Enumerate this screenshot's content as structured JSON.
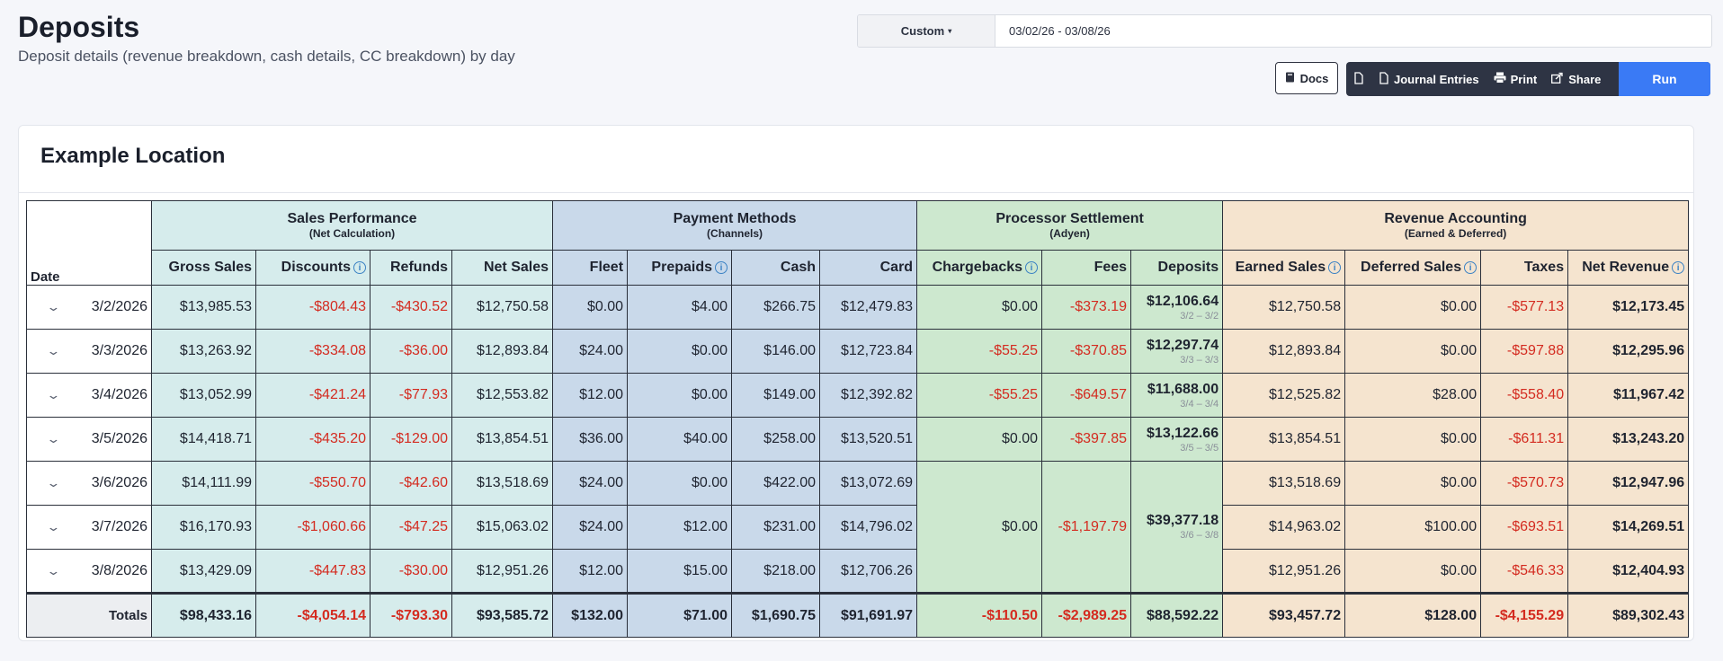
{
  "header": {
    "title": "Deposits",
    "subtitle": "Deposit details (revenue breakdown, cash details, CC breakdown) by day"
  },
  "filter": {
    "range_type": "Custom",
    "date_range": "03/02/26 - 03/08/26"
  },
  "toolbar": {
    "docs_label": "Docs",
    "journal_label": "Journal Entries",
    "print_label": "Print",
    "share_label": "Share",
    "run_label": "Run"
  },
  "card": {
    "location": "Example Location"
  },
  "table": {
    "date_header": "Date",
    "groups": [
      {
        "title": "Sales Performance",
        "sub": "(Net Calculation)"
      },
      {
        "title": "Payment Methods",
        "sub": "(Channels)"
      },
      {
        "title": "Processor Settlement",
        "sub": "(Adyen)"
      },
      {
        "title": "Revenue Accounting",
        "sub": "(Earned & Deferred)"
      }
    ],
    "columns": [
      "Gross Sales",
      "Discounts",
      "Refunds",
      "Net Sales",
      "Fleet",
      "Prepaids",
      "Cash",
      "Card",
      "Chargebacks",
      "Fees",
      "Deposits",
      "Earned Sales",
      "Deferred Sales",
      "Taxes",
      "Net Revenue"
    ],
    "info_icon": "ⓘ",
    "rows": [
      {
        "date": "3/2/2026",
        "gross": "$13,985.53",
        "discounts": "-$804.43",
        "refunds": "-$430.52",
        "net": "$12,750.58",
        "fleet": "$0.00",
        "prepaids": "$4.00",
        "cash": "$266.75",
        "card": "$12,479.83",
        "chargebacks": "$0.00",
        "fees": "-$373.19",
        "deposit": "$12,106.64",
        "deposit_range": "3/2 – 3/2",
        "earned": "$12,750.58",
        "deferred": "$0.00",
        "taxes": "-$577.13",
        "net_revenue": "$12,173.45"
      },
      {
        "date": "3/3/2026",
        "gross": "$13,263.92",
        "discounts": "-$334.08",
        "refunds": "-$36.00",
        "net": "$12,893.84",
        "fleet": "$24.00",
        "prepaids": "$0.00",
        "cash": "$146.00",
        "card": "$12,723.84",
        "chargebacks": "-$55.25",
        "fees": "-$370.85",
        "deposit": "$12,297.74",
        "deposit_range": "3/3 – 3/3",
        "earned": "$12,893.84",
        "deferred": "$0.00",
        "taxes": "-$597.88",
        "net_revenue": "$12,295.96"
      },
      {
        "date": "3/4/2026",
        "gross": "$13,052.99",
        "discounts": "-$421.24",
        "refunds": "-$77.93",
        "net": "$12,553.82",
        "fleet": "$12.00",
        "prepaids": "$0.00",
        "cash": "$149.00",
        "card": "$12,392.82",
        "chargebacks": "-$55.25",
        "fees": "-$649.57",
        "deposit": "$11,688.00",
        "deposit_range": "3/4 – 3/4",
        "earned": "$12,525.82",
        "deferred": "$28.00",
        "taxes": "-$558.40",
        "net_revenue": "$11,967.42"
      },
      {
        "date": "3/5/2026",
        "gross": "$14,418.71",
        "discounts": "-$435.20",
        "refunds": "-$129.00",
        "net": "$13,854.51",
        "fleet": "$36.00",
        "prepaids": "$40.00",
        "cash": "$258.00",
        "card": "$13,520.51",
        "chargebacks": "$0.00",
        "fees": "-$397.85",
        "deposit": "$13,122.66",
        "deposit_range": "3/5 – 3/5",
        "earned": "$13,854.51",
        "deferred": "$0.00",
        "taxes": "-$611.31",
        "net_revenue": "$13,243.20"
      },
      {
        "date": "3/6/2026",
        "gross": "$14,111.99",
        "discounts": "-$550.70",
        "refunds": "-$42.60",
        "net": "$13,518.69",
        "fleet": "$24.00",
        "prepaids": "$0.00",
        "cash": "$422.00",
        "card": "$13,072.69",
        "earned": "$13,518.69",
        "deferred": "$0.00",
        "taxes": "-$570.73",
        "net_revenue": "$12,947.96"
      },
      {
        "date": "3/7/2026",
        "gross": "$16,170.93",
        "discounts": "-$1,060.66",
        "refunds": "-$47.25",
        "net": "$15,063.02",
        "fleet": "$24.00",
        "prepaids": "$12.00",
        "cash": "$231.00",
        "card": "$14,796.02",
        "earned": "$14,963.02",
        "deferred": "$100.00",
        "taxes": "-$693.51",
        "net_revenue": "$14,269.51"
      },
      {
        "date": "3/8/2026",
        "gross": "$13,429.09",
        "discounts": "-$447.83",
        "refunds": "-$30.00",
        "net": "$12,951.26",
        "fleet": "$12.00",
        "prepaids": "$15.00",
        "cash": "$218.00",
        "card": "$12,706.26",
        "earned": "$12,951.26",
        "deferred": "$0.00",
        "taxes": "-$546.33",
        "net_revenue": "$12,404.93"
      }
    ],
    "merged_settlement": {
      "chargebacks": "$0.00",
      "fees": "-$1,197.79",
      "deposit": "$39,377.18",
      "deposit_range": "3/6 – 3/8"
    },
    "totals": {
      "label": "Totals",
      "gross": "$98,433.16",
      "discounts": "-$4,054.14",
      "refunds": "-$793.30",
      "net": "$93,585.72",
      "fleet": "$132.00",
      "prepaids": "$71.00",
      "cash": "$1,690.75",
      "card": "$91,691.97",
      "chargebacks": "-$110.50",
      "fees": "-$2,989.25",
      "deposit": "$88,592.22",
      "earned": "$93,457.72",
      "deferred": "$128.00",
      "taxes": "-$4,155.29",
      "net_revenue": "$89,302.43"
    }
  }
}
